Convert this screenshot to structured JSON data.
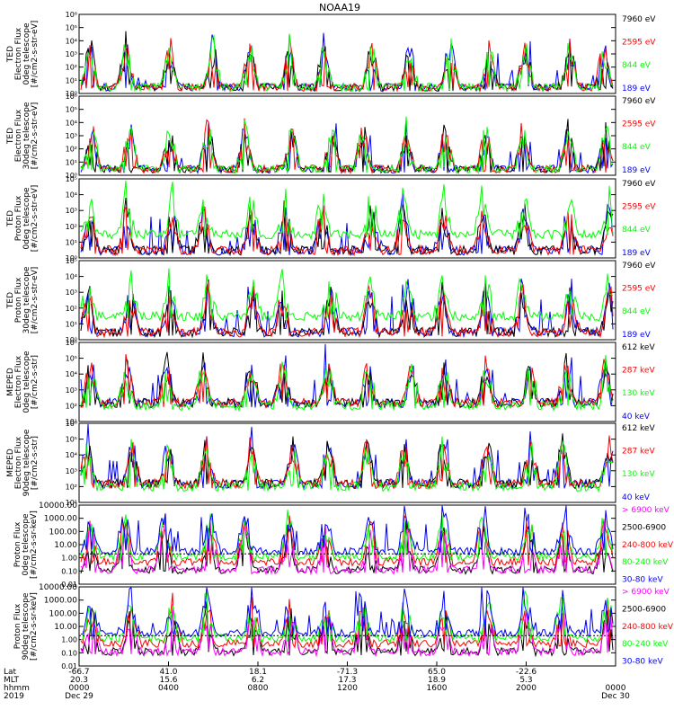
{
  "title": "NOAA19",
  "colors": {
    "black": "#000000",
    "red": "#ff0000",
    "green": "#00ff00",
    "blue": "#0000ff",
    "magenta": "#ff00ff"
  },
  "chart_data": [
    {
      "type": "line",
      "panel": "ted-electron-0deg",
      "ylabel_lines": [
        "TED",
        "Electron Flux",
        "0deg telescope",
        "[#/cm2-s-str-eV]"
      ],
      "yscale": "log",
      "ylim": [
        1,
        1000000
      ],
      "yticks": [
        "10⁰",
        "10¹",
        "10²",
        "10³",
        "10⁴",
        "10⁵",
        "10⁶"
      ],
      "series": [
        {
          "name": "7960 eV",
          "color": "#000000"
        },
        {
          "name": "2595 eV",
          "color": "#ff0000"
        },
        {
          "name": "844 eV",
          "color": "#00ff00"
        },
        {
          "name": "189 eV",
          "color": "#0000ff"
        }
      ]
    },
    {
      "type": "line",
      "panel": "ted-electron-30deg",
      "ylabel_lines": [
        "TED",
        "Electron Flux",
        "30deg telescope",
        "[#/cm2-s-str-eV]"
      ],
      "yscale": "log",
      "ylim": [
        1,
        1000000
      ],
      "yticks": [
        "10⁰",
        "10¹",
        "10²",
        "10³",
        "10⁴",
        "10⁵",
        "10⁶"
      ],
      "series": [
        {
          "name": "7960 eV",
          "color": "#000000"
        },
        {
          "name": "2595 eV",
          "color": "#ff0000"
        },
        {
          "name": "844 eV",
          "color": "#00ff00"
        },
        {
          "name": "189 eV",
          "color": "#0000ff"
        }
      ]
    },
    {
      "type": "line",
      "panel": "ted-proton-0deg",
      "ylabel_lines": [
        "TED",
        "Proton Flux",
        "0deg telescope",
        "[#/cm2-s-str-eV]"
      ],
      "yscale": "log",
      "ylim": [
        1,
        100000
      ],
      "yticks": [
        "10⁰",
        "10¹",
        "10²",
        "10³",
        "10⁴",
        "10⁵"
      ],
      "series": [
        {
          "name": "7960 eV",
          "color": "#000000"
        },
        {
          "name": "2595 eV",
          "color": "#ff0000"
        },
        {
          "name": "844 eV",
          "color": "#00ff00"
        },
        {
          "name": "189 eV",
          "color": "#0000ff"
        }
      ]
    },
    {
      "type": "line",
      "panel": "ted-proton-30deg",
      "ylabel_lines": [
        "TED",
        "Proton Flux",
        "30deg telescope",
        "[#/cm2-s-str-eV]"
      ],
      "yscale": "log",
      "ylim": [
        1,
        100000
      ],
      "yticks": [
        "10⁰",
        "10¹",
        "10²",
        "10³",
        "10⁴",
        "10⁵"
      ],
      "series": [
        {
          "name": "7960 eV",
          "color": "#000000"
        },
        {
          "name": "2595 eV",
          "color": "#ff0000"
        },
        {
          "name": "844 eV",
          "color": "#00ff00"
        },
        {
          "name": "189 eV",
          "color": "#0000ff"
        }
      ]
    },
    {
      "type": "line",
      "panel": "meped-electron-0deg",
      "ylabel_lines": [
        "MEPED",
        "Electron Flux",
        "0deg telescope",
        "[#/cm2-s-str]"
      ],
      "yscale": "log",
      "ylim": [
        10,
        1000000
      ],
      "yticks": [
        "10¹",
        "10²",
        "10³",
        "10⁴",
        "10⁵",
        "10⁶"
      ],
      "series": [
        {
          "name": "612 keV",
          "color": "#000000"
        },
        {
          "name": "287 keV",
          "color": "#ff0000"
        },
        {
          "name": "130 keV",
          "color": "#00ff00"
        },
        {
          "name": "40 keV",
          "color": "#0000ff"
        }
      ]
    },
    {
      "type": "line",
      "panel": "meped-electron-90deg",
      "ylabel_lines": [
        "MEPED",
        "Electron Flux",
        "90deg telescope",
        "[#/cm2-s-str]"
      ],
      "yscale": "log",
      "ylim": [
        10,
        1000000
      ],
      "yticks": [
        "10¹",
        "10²",
        "10³",
        "10⁴",
        "10⁵",
        "10⁶"
      ],
      "series": [
        {
          "name": "612 keV",
          "color": "#000000"
        },
        {
          "name": "287 keV",
          "color": "#ff0000"
        },
        {
          "name": "130 keV",
          "color": "#00ff00"
        },
        {
          "name": "40 keV",
          "color": "#0000ff"
        }
      ]
    },
    {
      "type": "line",
      "panel": "meped-proton-0deg",
      "ylabel_lines": [
        "Proton Flux",
        "0deg telescope",
        "[#/cm2-s-sr-keV]"
      ],
      "yscale": "log",
      "ylim": [
        0.01,
        10000
      ],
      "yticks": [
        "0.01",
        "0.10",
        "1.00",
        "10.00",
        "100.00",
        "1000.00",
        "10000.00"
      ],
      "series": [
        {
          "name": "> 6900 keV",
          "color": "#ff00ff"
        },
        {
          "name": "2500-6900",
          "color": "#000000"
        },
        {
          "name": "240-800 keV",
          "color": "#ff0000"
        },
        {
          "name": "80-240 keV",
          "color": "#00ff00"
        },
        {
          "name": "30-80 keV",
          "color": "#0000ff"
        }
      ]
    },
    {
      "type": "line",
      "panel": "meped-proton-90deg",
      "ylabel_lines": [
        "Proton Flux",
        "90deg telescope",
        "[#/cm2-s-sr-keV]"
      ],
      "yscale": "log",
      "ylim": [
        0.01,
        10000
      ],
      "yticks": [
        "0.01",
        "0.10",
        "1.00",
        "10.00",
        "100.00",
        "1000.00",
        "10000.00"
      ],
      "series": [
        {
          "name": "> 6900 keV",
          "color": "#ff00ff"
        },
        {
          "name": "2500-6900",
          "color": "#000000"
        },
        {
          "name": "240-800 keV",
          "color": "#ff0000"
        },
        {
          "name": "80-240 keV",
          "color": "#00ff00"
        },
        {
          "name": "30-80 keV",
          "color": "#0000ff"
        }
      ]
    }
  ],
  "xaxis": {
    "row_labels": [
      "Lat",
      "MLT",
      "hhmm",
      "2019"
    ],
    "ticks": [
      {
        "lat": "-66.7",
        "mlt": "20.3",
        "hhmm": "0000",
        "date": "Dec 29"
      },
      {
        "lat": "41.0",
        "mlt": "15.6",
        "hhmm": "0400",
        "date": ""
      },
      {
        "lat": "18.1",
        "mlt": "6.2",
        "hhmm": "0800",
        "date": ""
      },
      {
        "lat": "-71.3",
        "mlt": "17.3",
        "hhmm": "1200",
        "date": ""
      },
      {
        "lat": "65.0",
        "mlt": "18.9",
        "hhmm": "1600",
        "date": ""
      },
      {
        "lat": "-22.6",
        "mlt": "5.3",
        "hhmm": "2000",
        "date": ""
      },
      {
        "lat": "",
        "mlt": "",
        "hhmm": "0000",
        "date": "Dec 30"
      }
    ]
  }
}
